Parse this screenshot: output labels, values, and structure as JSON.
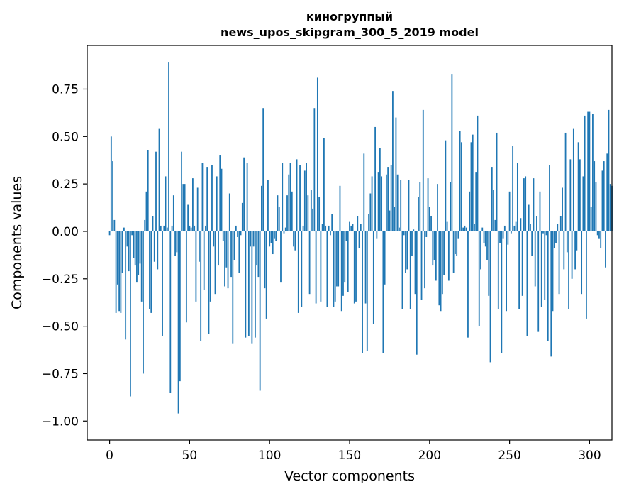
{
  "chart_data": {
    "type": "bar",
    "title": "киногруппый",
    "subtitle": "news_upos_skipgram_300_5_2019 model",
    "xlabel": "Vector components",
    "ylabel": "Components values",
    "xlim": [
      -14,
      314
    ],
    "ylim": [
      -1.1,
      0.98
    ],
    "xticks": [
      0,
      50,
      100,
      150,
      200,
      250,
      300
    ],
    "yticks": [
      -1.0,
      -0.75,
      -0.5,
      -0.25,
      0.0,
      0.25,
      0.5,
      0.75
    ],
    "xtick_labels": [
      "0",
      "50",
      "100",
      "150",
      "200",
      "250",
      "300"
    ],
    "ytick_labels": [
      "−1.00",
      "−0.75",
      "−0.50",
      "−0.25",
      "0.00",
      "0.25",
      "0.50",
      "0.75"
    ],
    "bar_color": "#1f77b4",
    "grid": false,
    "values": [
      -0.02,
      0.5,
      0.37,
      0.06,
      -0.43,
      -0.28,
      -0.42,
      -0.43,
      -0.22,
      0.02,
      -0.57,
      -0.08,
      -0.21,
      -0.87,
      -0.02,
      -0.14,
      -0.18,
      -0.27,
      -0.23,
      -0.17,
      -0.37,
      -0.75,
      0.06,
      0.21,
      0.43,
      -0.41,
      -0.43,
      0.08,
      -0.16,
      0.42,
      -0.2,
      0.54,
      0.03,
      -0.55,
      0.03,
      0.29,
      0.02,
      0.89,
      -0.85,
      0.03,
      0.19,
      -0.13,
      -0.11,
      -0.96,
      -0.79,
      0.42,
      0.25,
      0.25,
      -0.48,
      0.14,
      0.03,
      0.02,
      0.28,
      0.03,
      -0.37,
      0.23,
      -0.16,
      -0.58,
      0.36,
      -0.31,
      0.03,
      0.34,
      -0.54,
      -0.37,
      0.35,
      -0.08,
      -0.33,
      0.29,
      -0.18,
      0.4,
      0.33,
      -0.05,
      -0.29,
      -0.19,
      -0.3,
      0.2,
      -0.24,
      -0.59,
      -0.15,
      0.03,
      -0.03,
      -0.22,
      -0.02,
      0.15,
      0.39,
      -0.56,
      0.36,
      -0.55,
      -0.08,
      -0.59,
      -0.08,
      -0.56,
      -0.18,
      -0.24,
      -0.84,
      0.24,
      0.65,
      -0.3,
      -0.46,
      0.27,
      -0.08,
      -0.06,
      -0.12,
      -0.04,
      -0.05,
      0.19,
      0.13,
      -0.27,
      0.36,
      -0.01,
      0.02,
      0.19,
      0.3,
      0.36,
      0.21,
      -0.08,
      -0.1,
      0.38,
      -0.43,
      0.35,
      -0.4,
      0.03,
      0.32,
      0.36,
      0.19,
      -0.33,
      0.22,
      0.12,
      0.65,
      -0.38,
      0.81,
      0.18,
      -0.37,
      0.04,
      0.49,
      0.03,
      -0.4,
      0.03,
      -0.02,
      0.09,
      -0.4,
      -0.37,
      -0.29,
      -0.29,
      0.24,
      -0.42,
      -0.34,
      -0.27,
      -0.05,
      -0.32,
      0.05,
      0.03,
      0.04,
      -0.38,
      -0.37,
      0.08,
      -0.09,
      0.04,
      -0.64,
      0.41,
      -0.38,
      -0.63,
      0.09,
      0.2,
      0.29,
      -0.49,
      0.55,
      -0.04,
      0.31,
      0.44,
      0.29,
      -0.64,
      -0.28,
      0.3,
      0.34,
      0.11,
      0.35,
      0.74,
      0.13,
      0.6,
      0.3,
      0.02,
      0.27,
      -0.41,
      -0.02,
      -0.22,
      -0.2,
      0.27,
      -0.41,
      -0.13,
      0.01,
      -0.33,
      -0.65,
      0.18,
      0.26,
      -0.36,
      0.64,
      -0.3,
      -0.03,
      0.28,
      0.13,
      0.08,
      -0.18,
      -0.15,
      -0.26,
      0.25,
      -0.39,
      -0.42,
      -0.33,
      -0.23,
      0.48,
      0.05,
      -0.26,
      0.26,
      0.83,
      -0.22,
      -0.12,
      -0.13,
      -0.04,
      0.53,
      0.47,
      0.02,
      0.03,
      0.02,
      -0.56,
      0.21,
      0.47,
      0.51,
      0.04,
      0.31,
      0.61,
      -0.5,
      -0.2,
      0.02,
      -0.06,
      -0.08,
      -0.15,
      -0.34,
      -0.69,
      0.34,
      0.22,
      0.06,
      0.52,
      -0.41,
      -0.06,
      -0.64,
      -0.04,
      0.03,
      -0.42,
      -0.07,
      0.21,
      -0.01,
      0.45,
      0.03,
      0.05,
      0.36,
      -0.41,
      0.07,
      -0.34,
      0.28,
      0.29,
      -0.55,
      0.14,
      0.04,
      -0.13,
      0.28,
      -0.29,
      0.08,
      -0.53,
      0.21,
      -0.4,
      -0.01,
      -0.36,
      -0.02,
      -0.58,
      0.35,
      -0.66,
      -0.42,
      -0.09,
      -0.06,
      0.04,
      -0.33,
      0.08,
      0.23,
      -0.2,
      0.52,
      -0.11,
      -0.41,
      0.38,
      -0.25,
      0.54,
      -0.2,
      -0.1,
      0.47,
      0.38,
      -0.33,
      0.29,
      0.61,
      -0.46,
      0.63,
      0.63,
      0.13,
      0.62,
      0.37,
      0.26,
      -0.02,
      -0.04,
      -0.09,
      0.32,
      0.37,
      -0.19,
      0.41,
      0.64,
      0.25,
      0.24
    ]
  }
}
